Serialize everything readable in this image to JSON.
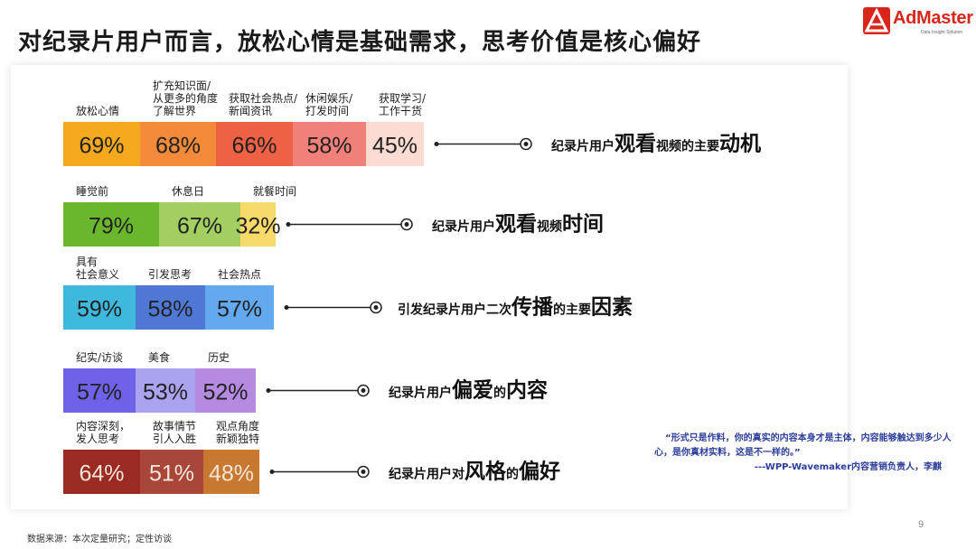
{
  "page": {
    "title": "对纪录片用户而言，放松心情是基础需求，思考价值是核心偏好",
    "logo_text": "AdMaster",
    "logo_tagline": "Data Insight Solution",
    "brand_color": "#d8261c",
    "quote_text": "“形式只是作料，你的真实的内容本身才是主体，内容能够触达到多少人心，是你真材实料，这是不一样的。”",
    "quote_source": "---WPP-Wavemaker内容营销负责人，李麒",
    "quote_color": "#2c3e9a",
    "footnote": "数据来源：本次定量研究；定性访谈",
    "page_number": "9"
  },
  "chart_data": [
    {
      "type": "bar",
      "layout": "stacked-horizontal-segments",
      "label_parts": [
        "纪录片用户",
        "观看",
        "视频的主要",
        "动机"
      ],
      "emphasis_parts": [
        1,
        3
      ],
      "categories": [
        "放松心情",
        "扩充知识面/从更多的角度了解世界",
        "获取社会热点/新闻资讯",
        "休闲娱乐/打发时间",
        "获取学习/工作干货"
      ],
      "category_lines": [
        [
          "放松心情"
        ],
        [
          "扩充知识面/",
          "从更多的角度",
          "了解世界"
        ],
        [
          "获取社会热点/",
          "新闻资讯"
        ],
        [
          "休闲娱乐/",
          "打发时间"
        ],
        [
          "获取学习/",
          "工作干货"
        ]
      ],
      "values": [
        69,
        68,
        66,
        58,
        45
      ],
      "value_labels": [
        "69%",
        "68%",
        "66%",
        "58%",
        "45%"
      ],
      "colors": [
        "#f4a81d",
        "#f28a3a",
        "#ef6145",
        "#f2807a",
        "#fbdcd2"
      ]
    },
    {
      "type": "bar",
      "layout": "stacked-horizontal-segments",
      "label_parts": [
        "纪录片用户",
        "观看",
        "视频",
        "时间"
      ],
      "emphasis_parts": [
        1,
        3
      ],
      "categories": [
        "睡觉前",
        "休息日",
        "就餐时间"
      ],
      "category_lines": [
        [
          "睡觉前"
        ],
        [
          "休息日"
        ],
        [
          "就餐时间"
        ]
      ],
      "values": [
        79,
        67,
        32
      ],
      "value_labels": [
        "79%",
        "67%",
        "32%"
      ],
      "colors": [
        "#6ab72e",
        "#a3cf62",
        "#f7da6a"
      ]
    },
    {
      "type": "bar",
      "layout": "stacked-horizontal-segments",
      "label_parts": [
        "引发纪录片用户二次",
        "传播",
        "的主要",
        "因素"
      ],
      "emphasis_parts": [
        1,
        3
      ],
      "categories": [
        "具有社会意义",
        "引发思考",
        "社会热点"
      ],
      "category_lines": [
        [
          "具有",
          "社会意义"
        ],
        [
          "引发思考"
        ],
        [
          "社会热点"
        ]
      ],
      "values": [
        59,
        58,
        57
      ],
      "value_labels": [
        "59%",
        "58%",
        "57%"
      ],
      "colors": [
        "#3fb8de",
        "#4f78d6",
        "#62a9ef"
      ]
    },
    {
      "type": "bar",
      "layout": "stacked-horizontal-segments",
      "label_parts": [
        "纪录片用户",
        "偏爱",
        "的",
        "内容"
      ],
      "emphasis_parts": [
        1,
        3
      ],
      "categories": [
        "纪实/访谈",
        "美食",
        "历史"
      ],
      "category_lines": [
        [
          "纪实/访谈"
        ],
        [
          "美食"
        ],
        [
          "历史"
        ]
      ],
      "values": [
        57,
        53,
        52
      ],
      "value_labels": [
        "57%",
        "53%",
        "52%"
      ],
      "colors": [
        "#6e63e8",
        "#a9a3f0",
        "#b58ae0"
      ]
    },
    {
      "type": "bar",
      "layout": "stacked-horizontal-segments",
      "label_parts": [
        "纪录片用户对",
        "风格",
        "的",
        "偏好"
      ],
      "emphasis_parts": [
        1,
        3
      ],
      "categories": [
        "内容深刻，发人思考",
        "故事情节引人入胜",
        "观点角度新颖独特"
      ],
      "category_lines": [
        [
          "内容深刻，",
          "发人思考"
        ],
        [
          "故事情节",
          "引人入胜"
        ],
        [
          "观点角度",
          "新颖独特"
        ]
      ],
      "values": [
        64,
        51,
        48
      ],
      "value_labels": [
        "64%",
        "51%",
        "48%"
      ],
      "colors": [
        "#9a2a22",
        "#a8463a",
        "#c9782f"
      ]
    }
  ]
}
